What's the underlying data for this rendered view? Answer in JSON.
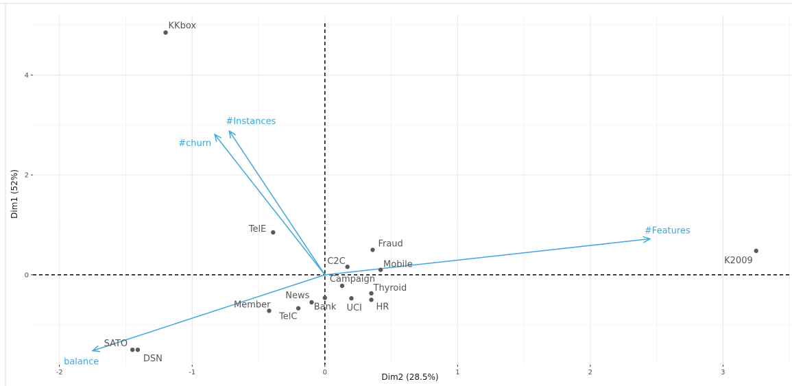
{
  "chart_data": {
    "type": "scatter",
    "subtype": "PCA biplot",
    "xlabel": "Dim2 (28.5%)",
    "ylabel": "Dim1 (52%)",
    "xlim": [
      -2.2,
      3.52
    ],
    "ylim": [
      -1.8,
      5.2
    ],
    "x_ticks": [
      -2,
      -1,
      0,
      1,
      2,
      3
    ],
    "y_ticks": [
      0,
      2,
      4
    ],
    "x_tick_labels": [
      "-2",
      "-1",
      "0",
      "1",
      "2",
      "3"
    ],
    "y_tick_labels": [
      "0",
      "2",
      "4"
    ],
    "grid": true,
    "reference_lines": {
      "x": 0,
      "y": 0,
      "style": "dashed"
    },
    "point_color": "#5a5a5a",
    "vector_color": "#3fa7dd",
    "points": [
      {
        "label": "KKbox",
        "x": -1.2,
        "y": 4.85
      },
      {
        "label": "TelE",
        "x": -0.39,
        "y": 0.85
      },
      {
        "label": "Fraud",
        "x": 0.36,
        "y": 0.5
      },
      {
        "label": "C2C",
        "x": 0.17,
        "y": 0.16
      },
      {
        "label": "Mobile",
        "x": 0.42,
        "y": 0.1
      },
      {
        "label": "K2009",
        "x": 3.25,
        "y": 0.48
      },
      {
        "label": "Campaign",
        "x": 0.13,
        "y": -0.22
      },
      {
        "label": "Thyroid",
        "x": 0.35,
        "y": -0.37
      },
      {
        "label": "HR",
        "x": 0.35,
        "y": -0.5
      },
      {
        "label": "UCI",
        "x": 0.2,
        "y": -0.47
      },
      {
        "label": "News",
        "x": -0.1,
        "y": -0.55
      },
      {
        "label": "Bank",
        "x": 0.0,
        "y": -0.46
      },
      {
        "label": "TelC",
        "x": -0.2,
        "y": -0.67
      },
      {
        "label": "Member",
        "x": -0.42,
        "y": -0.72
      },
      {
        "label": "SATO",
        "x": -1.45,
        "y": -1.5
      },
      {
        "label": "DSN",
        "x": -1.41,
        "y": -1.5
      }
    ],
    "vectors": [
      {
        "label": "#Instances",
        "x": -0.72,
        "y": 2.88
      },
      {
        "label": "#churn",
        "x": -0.83,
        "y": 2.81
      },
      {
        "label": "#Features",
        "x": 2.45,
        "y": 0.72
      },
      {
        "label": "balance",
        "x": -1.75,
        "y": -1.52
      }
    ]
  }
}
